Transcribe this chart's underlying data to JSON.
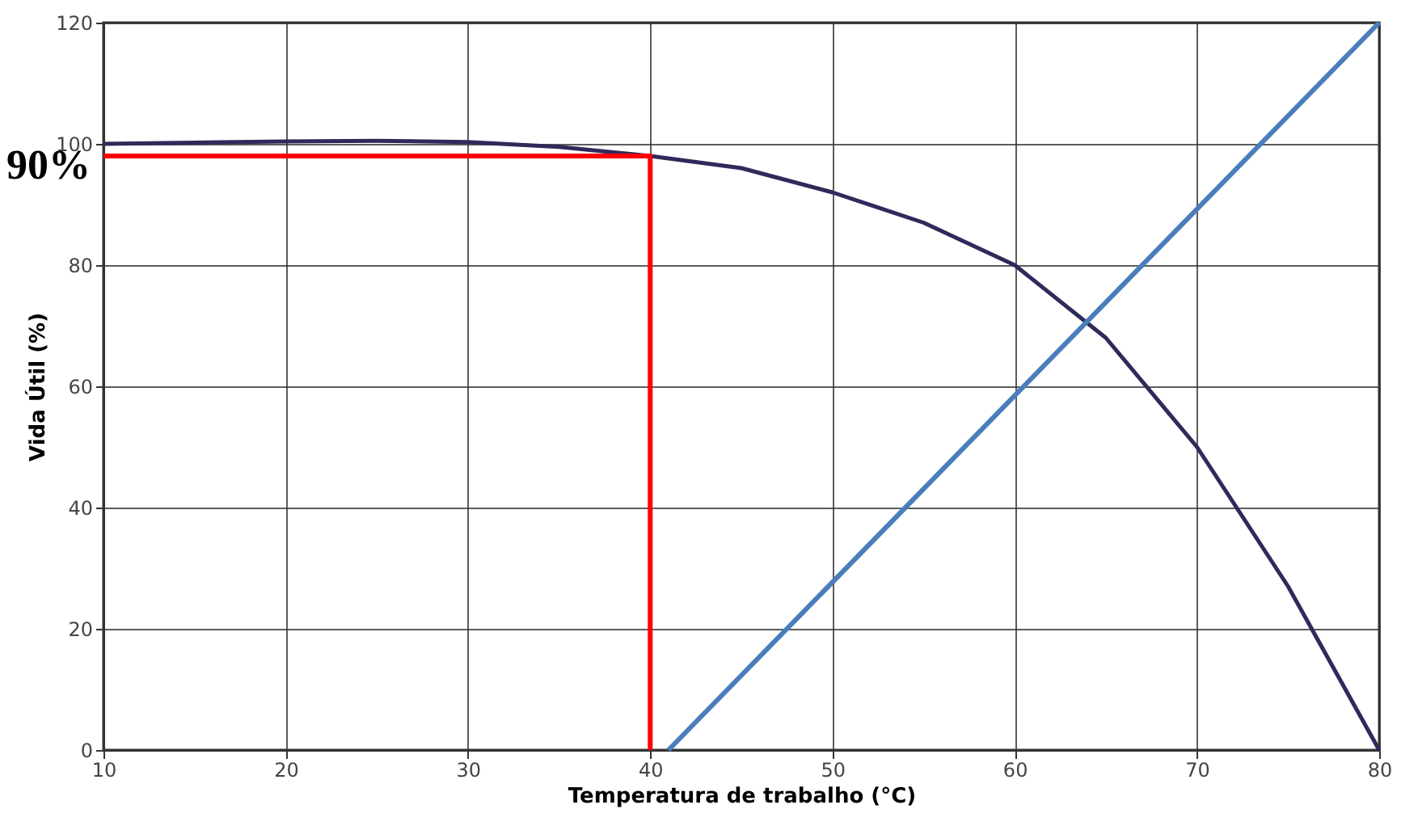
{
  "chart_data": {
    "type": "line",
    "xlabel": "Temperatura de trabalho (°C)",
    "ylabel": "Vida Útil (%)",
    "x": [
      10,
      15,
      20,
      25,
      30,
      35,
      40,
      45,
      50,
      55,
      60,
      65,
      70,
      75,
      80
    ],
    "series": [
      {
        "color": "#2e2a5a",
        "values": [
          100,
          100.2,
          100.4,
          100.5,
          100.3,
          99.5,
          98,
          96,
          92,
          87,
          80,
          68,
          50,
          27,
          0
        ]
      },
      {
        "type": "line",
        "color": "#ff0000",
        "x": [
          40,
          40,
          10
        ],
        "values": [
          0,
          98,
          98
        ]
      },
      {
        "type": "line",
        "color": "#4a7ebb",
        "x": [
          80,
          41
        ],
        "values": [
          120,
          0
        ]
      }
    ],
    "annotations": [
      {
        "text": "90%",
        "x": 10,
        "y": 98
      }
    ],
    "xlim": [
      10,
      80
    ],
    "xticks": [
      10,
      20,
      30,
      40,
      50,
      60,
      70,
      80
    ],
    "ylim": [
      0,
      120
    ],
    "yticks": [
      0,
      20,
      40,
      60,
      80,
      100,
      120
    ],
    "grid": true,
    "marker": "none",
    "line_style": "solid"
  }
}
